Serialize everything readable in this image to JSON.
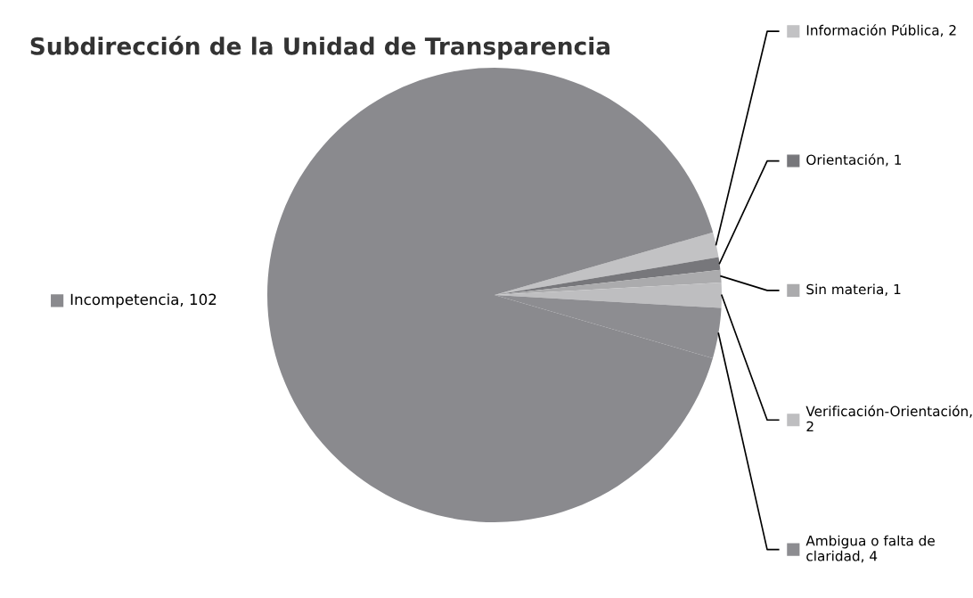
{
  "chart_data": {
    "type": "pie",
    "title": "Subdirección de la Unidad de Transparencia",
    "categories": [
      "Información Pública, 2",
      "Orientación, 1",
      "Sin materia, 1",
      "Verificación-Orientación, 2",
      "Ambigua o falta de claridad, 4",
      "Incompetencia, 102"
    ],
    "values": [
      2,
      1,
      1,
      2,
      4,
      102
    ],
    "colors": [
      "#c2c2c4",
      "#77777b",
      "#ababad",
      "#bebec0",
      "#8d8d91",
      "#8a8a8e"
    ],
    "legend": "right"
  }
}
